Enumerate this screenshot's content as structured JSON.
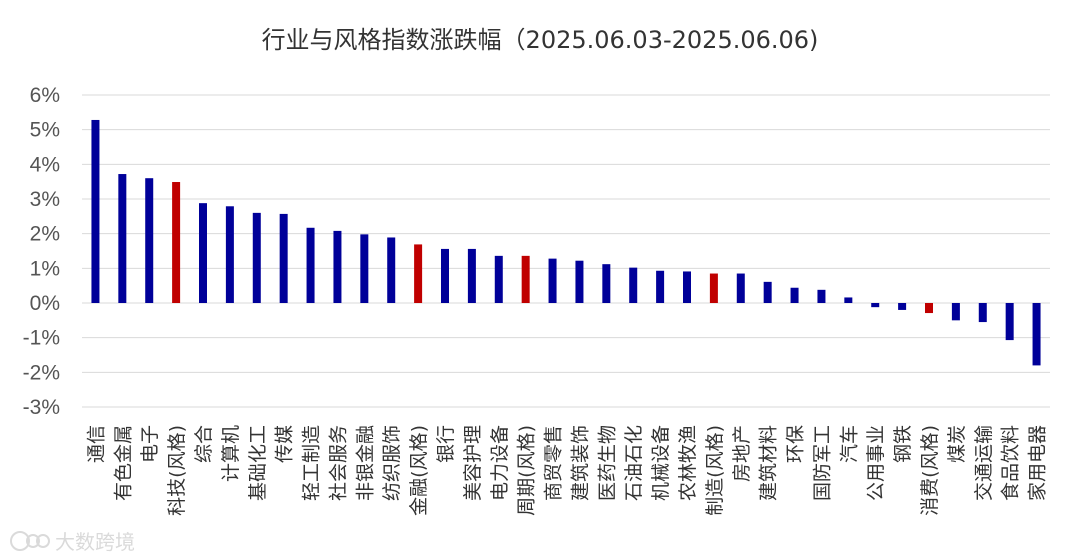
{
  "chart_data": {
    "type": "bar",
    "title": "行业与风格指数涨跌幅（2025.06.03-2025.06.06)",
    "xlabel": "",
    "ylabel": "",
    "ylim": [
      -3,
      6
    ],
    "yticks": [
      -3,
      -2,
      -1,
      0,
      1,
      2,
      3,
      4,
      5,
      6
    ],
    "ytick_labels": [
      "-3%",
      "-2%",
      "-1%",
      "0%",
      "1%",
      "2%",
      "3%",
      "4%",
      "5%",
      "6%"
    ],
    "grid": true,
    "legend": "none",
    "categories": [
      "通信",
      "有色金属",
      "电子",
      "科技(风格)",
      "综合",
      "计算机",
      "基础化工",
      "传媒",
      "轻工制造",
      "社会服务",
      "非银金融",
      "纺织服饰",
      "金融(风格)",
      "银行",
      "美容护理",
      "电力设备",
      "周期(风格)",
      "商贸零售",
      "建筑装饰",
      "医药生物",
      "石油石化",
      "机械设备",
      "农林牧渔",
      "制造(风格)",
      "房地产",
      "建筑材料",
      "环保",
      "国防军工",
      "汽车",
      "公用事业",
      "钢铁",
      "消费(风格)",
      "煤炭",
      "交通运输",
      "食品饮料",
      "家用电器"
    ],
    "values": [
      5.28,
      3.72,
      3.6,
      3.49,
      2.88,
      2.79,
      2.6,
      2.57,
      2.17,
      2.08,
      1.98,
      1.89,
      1.69,
      1.56,
      1.56,
      1.36,
      1.36,
      1.28,
      1.22,
      1.12,
      1.02,
      0.93,
      0.91,
      0.85,
      0.85,
      0.61,
      0.44,
      0.38,
      0.16,
      -0.12,
      -0.2,
      -0.29,
      -0.5,
      -0.55,
      -1.07,
      -1.8
    ],
    "highlight": [
      false,
      false,
      false,
      true,
      false,
      false,
      false,
      false,
      false,
      false,
      false,
      false,
      true,
      false,
      false,
      false,
      true,
      false,
      false,
      false,
      false,
      false,
      false,
      true,
      false,
      false,
      false,
      false,
      false,
      false,
      false,
      true,
      false,
      false,
      false,
      false
    ]
  },
  "colors": {
    "bar": "#000099",
    "highlight_bar": "#c00000",
    "grid": "#d9d9d9"
  },
  "watermark": {
    "text": "大数跨境",
    "icon": "logo-icon"
  }
}
